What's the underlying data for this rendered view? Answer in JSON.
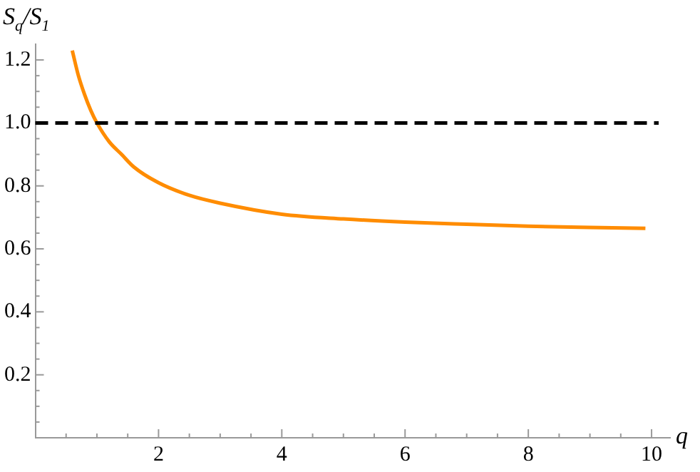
{
  "chart_data": {
    "type": "line",
    "xlabel": "q",
    "ylabel": "S$_{q}$/S$_{1}$",
    "x": [
      0.6,
      0.7,
      0.8,
      0.9,
      1.0,
      1.2,
      1.4,
      1.6,
      2,
      2.5,
      3,
      4,
      5,
      6,
      7,
      8,
      9,
      9.9
    ],
    "series": [
      {
        "color": "#ff8c00",
        "values": [
          1.23,
          1.15,
          1.09,
          1.04,
          1.0,
          0.94,
          0.9,
          0.86,
          0.81,
          0.77,
          0.745,
          0.71,
          0.695,
          0.685,
          0.678,
          0.672,
          0.668,
          0.665
        ]
      }
    ],
    "xlim": [
      0,
      10.3
    ],
    "ylim": [
      0,
      1.25
    ],
    "xticks": [
      {
        "value": 0.5,
        "label": null
      },
      {
        "value": 1,
        "label": null
      },
      {
        "value": 1.5,
        "label": null
      },
      2,
      {
        "value": 2.5,
        "label": null
      },
      {
        "value": 3,
        "label": null
      },
      {
        "value": 3.5,
        "label": null
      },
      4,
      {
        "value": 4.5,
        "label": null
      },
      {
        "value": 5,
        "label": null
      },
      {
        "value": 5.5,
        "label": null
      },
      6,
      {
        "value": 6.5,
        "label": null
      },
      {
        "value": 7,
        "label": null
      },
      {
        "value": 7.5,
        "label": null
      },
      8,
      {
        "value": 8.5,
        "label": null
      },
      {
        "value": 9,
        "label": null
      },
      {
        "value": 9.5,
        "label": null
      },
      10
    ],
    "yticks": [
      {
        "value": 0.05,
        "label": null
      },
      {
        "value": 0.1,
        "label": null
      },
      {
        "value": 0.15,
        "label": null
      },
      {
        "value": 0.2,
        "label": "0.2"
      },
      {
        "value": 0.25,
        "label": null
      },
      {
        "value": 0.3,
        "label": null
      },
      {
        "value": 0.35,
        "label": null
      },
      {
        "value": 0.4,
        "label": "0.4"
      },
      {
        "value": 0.45,
        "label": null
      },
      {
        "value": 0.5,
        "label": null
      },
      {
        "value": 0.55,
        "label": null
      },
      {
        "value": 0.6,
        "label": "0.6"
      },
      {
        "value": 0.65,
        "label": null
      },
      {
        "value": 0.7,
        "label": null
      },
      {
        "value": 0.75,
        "label": null
      },
      {
        "value": 0.8,
        "label": "0.8"
      },
      {
        "value": 0.85,
        "label": null
      },
      {
        "value": 0.9,
        "label": null
      },
      {
        "value": 0.95,
        "label": null
      },
      {
        "value": 1.0,
        "label": "1.0"
      },
      {
        "value": 1.05,
        "label": null
      },
      {
        "value": 1.1,
        "label": null
      },
      {
        "value": 1.15,
        "label": null
      },
      {
        "value": 1.2,
        "label": "1.2"
      }
    ],
    "ref_lines": [
      {
        "axis": "y",
        "value": 1.0,
        "color": "#000000",
        "line_style": "dashed"
      }
    ],
    "grid": false,
    "legend": false,
    "marker": "none"
  }
}
